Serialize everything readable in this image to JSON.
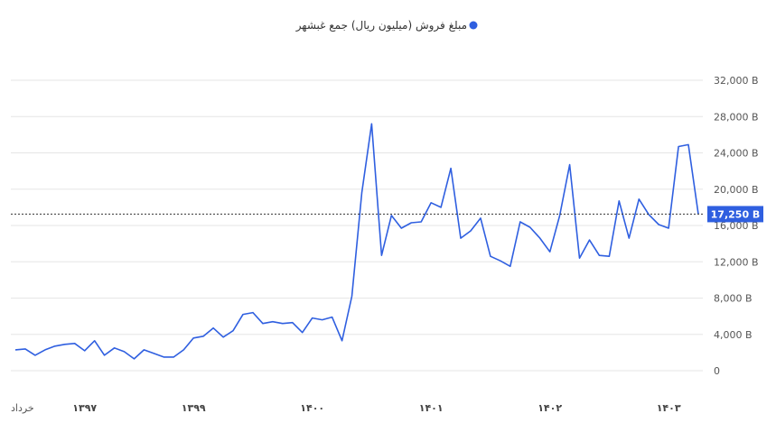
{
  "chart_data": {
    "type": "line",
    "legend": {
      "placement": "top-center",
      "label": "مبلغ فروش (میلیون ریال) جمع غبشهر"
    },
    "series": [
      {
        "name": "مبلغ فروش (میلیون ریال) جمع غبشهر",
        "color": "#2f5fe0",
        "values": [
          2300,
          2400,
          1700,
          2300,
          2700,
          2900,
          3000,
          2200,
          3300,
          1700,
          2500,
          2100,
          1300,
          2300,
          1900,
          1500,
          1500,
          2300,
          3600,
          3800,
          4700,
          3700,
          4400,
          6200,
          6400,
          5200,
          5400,
          5200,
          5300,
          4200,
          5800,
          5600,
          5900,
          3300,
          8200,
          19600,
          27200,
          12700,
          17100,
          15700,
          16300,
          16400,
          18500,
          18000,
          22300,
          14600,
          15400,
          16800,
          12600,
          12100,
          11500,
          16400,
          15800,
          14600,
          13100,
          17100,
          22700,
          12400,
          14400,
          12700,
          12600,
          18700,
          14600,
          18900,
          17200,
          16100,
          15700,
          24700,
          24900,
          17250
        ]
      }
    ],
    "x_tick_labels": [
      {
        "label": "خرداد",
        "index": 0
      },
      {
        "label": "۱۳۹۷",
        "index": 7
      },
      {
        "label": "۱۳۹۹",
        "index": 18
      },
      {
        "label": "۱۴۰۰",
        "index": 30
      },
      {
        "label": "۱۴۰۱",
        "index": 42
      },
      {
        "label": "۱۴۰۲",
        "index": 54
      },
      {
        "label": "۱۴۰۳",
        "index": 66
      }
    ],
    "y_ticks": [
      0,
      4000,
      8000,
      12000,
      16000,
      20000,
      24000,
      28000,
      32000
    ],
    "y_tick_labels": [
      "0",
      "4,000 B",
      "8,000 B",
      "12,000 B",
      "16,000 B",
      "20,000 B",
      "24,000 B",
      "28,000 B",
      "32,000 B"
    ],
    "ylim": [
      0,
      32000
    ],
    "y_axis_position": "right",
    "grid": true,
    "current_value": {
      "value": 17250,
      "label": "17,250 B",
      "color": "#2f5fe0"
    }
  }
}
